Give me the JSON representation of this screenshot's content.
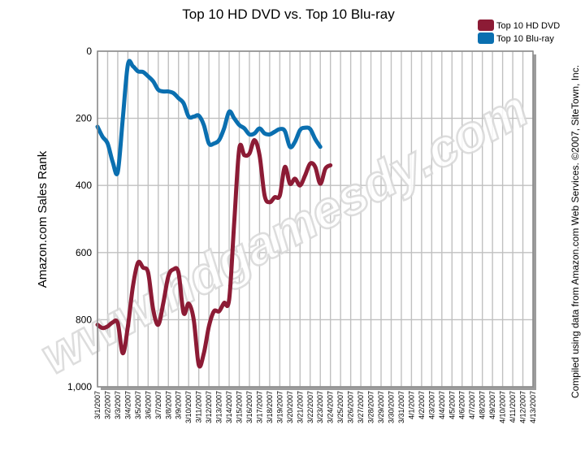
{
  "colors": {
    "hd_dvd": "#8c1b35",
    "bluray": "#0a6fb0",
    "grid": "#c0c0c0",
    "plot_bg": "#ffffff",
    "frame": "#888888",
    "shadow": "#9c9c9c"
  },
  "watermark": "www.hdgamesdy.com",
  "credit": "Compiled using data from Amazon.com Web Services. ©2007, SiteTown, Inc.",
  "chart_data": {
    "type": "line",
    "title": "Top 10 HD DVD vs. Top 10 Blu-ray",
    "xlabel": "",
    "ylabel": "Amazon.com Sales Rank",
    "ylim": [
      0,
      1000
    ],
    "y_inverted": true,
    "y_ticks": [
      0,
      200,
      400,
      600,
      800,
      1000
    ],
    "y_tick_labels": [
      "0",
      "200",
      "400",
      "600",
      "800",
      "1,000"
    ],
    "grid": true,
    "legend_position": "top-right",
    "categories": [
      "3/1/2007",
      "3/2/2007",
      "3/3/2007",
      "3/4/2007",
      "3/5/2007",
      "3/6/2007",
      "3/7/2007",
      "3/8/2007",
      "3/9/2007",
      "3/10/2007",
      "3/11/2007",
      "3/12/2007",
      "3/13/2007",
      "3/14/2007",
      "3/15/2007",
      "3/16/2007",
      "3/17/2007",
      "3/18/2007",
      "3/19/2007",
      "3/20/2007",
      "3/21/2007",
      "3/22/2007",
      "3/23/2007",
      "3/24/2007",
      "3/25/2007",
      "3/26/2007",
      "3/27/2007",
      "3/28/2007",
      "3/29/2007",
      "3/30/2007",
      "3/31/2007",
      "4/1/2007",
      "4/2/2007",
      "4/3/2007",
      "4/4/2007",
      "4/5/2007",
      "4/6/2007",
      "4/7/2007",
      "4/8/2007",
      "4/9/2007",
      "4/10/2007",
      "4/11/2007",
      "4/12/2007",
      "4/13/2007"
    ],
    "series": [
      {
        "name": "Top 10 HD DVD",
        "points": [
          [
            0,
            815
          ],
          [
            0.5,
            825
          ],
          [
            1,
            820
          ],
          [
            1.5,
            808
          ],
          [
            2,
            810
          ],
          [
            2.5,
            900
          ],
          [
            3,
            820
          ],
          [
            3.5,
            700
          ],
          [
            4,
            630
          ],
          [
            4.5,
            645
          ],
          [
            5,
            660
          ],
          [
            5.5,
            770
          ],
          [
            6,
            815
          ],
          [
            6.5,
            750
          ],
          [
            7,
            670
          ],
          [
            7.5,
            650
          ],
          [
            8,
            660
          ],
          [
            8.5,
            780
          ],
          [
            9,
            752
          ],
          [
            9.5,
            800
          ],
          [
            10,
            935
          ],
          [
            10.5,
            900
          ],
          [
            11,
            820
          ],
          [
            11.5,
            775
          ],
          [
            12,
            775
          ],
          [
            12.5,
            750
          ],
          [
            13,
            740
          ],
          [
            13.5,
            510
          ],
          [
            14,
            290
          ],
          [
            14.5,
            310
          ],
          [
            15,
            305
          ],
          [
            15.5,
            265
          ],
          [
            16,
            310
          ],
          [
            16.5,
            430
          ],
          [
            17,
            450
          ],
          [
            17.5,
            435
          ],
          [
            18,
            430
          ],
          [
            18.5,
            345
          ],
          [
            19,
            395
          ],
          [
            19.5,
            380
          ],
          [
            20,
            400
          ],
          [
            20.5,
            370
          ],
          [
            21,
            335
          ],
          [
            21.5,
            345
          ],
          [
            22,
            395
          ],
          [
            22.5,
            350
          ],
          [
            23,
            340
          ]
        ]
      },
      {
        "name": "Top 10 Blu-ray",
        "points": [
          [
            0,
            225
          ],
          [
            0.5,
            255
          ],
          [
            1,
            275
          ],
          [
            1.5,
            330
          ],
          [
            2,
            360
          ],
          [
            2.5,
            200
          ],
          [
            3,
            40
          ],
          [
            3.5,
            45
          ],
          [
            4,
            60
          ],
          [
            4.5,
            62
          ],
          [
            5,
            75
          ],
          [
            5.5,
            90
          ],
          [
            6,
            115
          ],
          [
            6.5,
            120
          ],
          [
            7,
            120
          ],
          [
            7.5,
            125
          ],
          [
            8,
            140
          ],
          [
            8.5,
            155
          ],
          [
            9,
            195
          ],
          [
            9.5,
            195
          ],
          [
            10,
            192
          ],
          [
            10.5,
            220
          ],
          [
            11,
            275
          ],
          [
            11.5,
            275
          ],
          [
            12,
            265
          ],
          [
            12.5,
            230
          ],
          [
            13,
            180
          ],
          [
            13.5,
            200
          ],
          [
            14,
            220
          ],
          [
            14.5,
            230
          ],
          [
            15,
            248
          ],
          [
            15.5,
            245
          ],
          [
            16,
            230
          ],
          [
            16.5,
            245
          ],
          [
            17,
            248
          ],
          [
            17.5,
            240
          ],
          [
            18,
            232
          ],
          [
            18.5,
            238
          ],
          [
            19,
            285
          ],
          [
            19.5,
            270
          ],
          [
            20,
            235
          ],
          [
            20.5,
            228
          ],
          [
            21,
            232
          ],
          [
            21.5,
            262
          ],
          [
            22,
            285
          ]
        ]
      }
    ]
  }
}
